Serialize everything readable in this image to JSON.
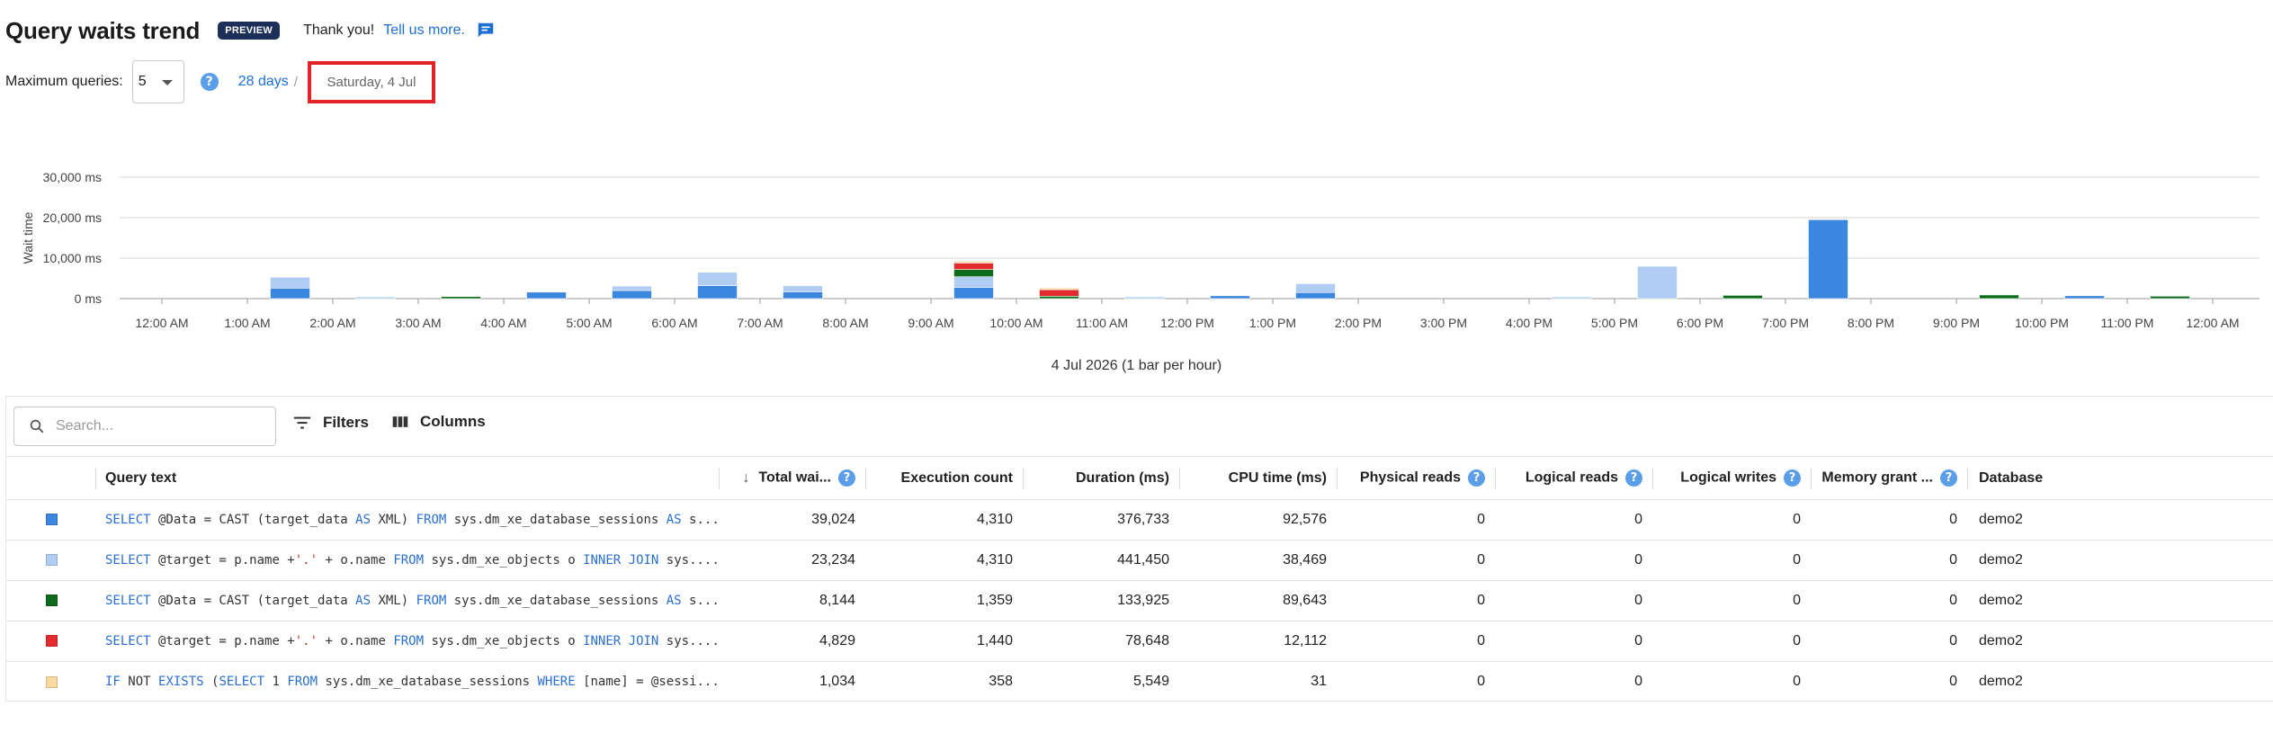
{
  "header": {
    "title": "Query waits trend",
    "badge": "PREVIEW",
    "thanks": "Thank you!",
    "tell_us": "Tell us more."
  },
  "controls": {
    "max_queries_label": "Maximum queries:",
    "max_queries_value": "5",
    "range_link": "28 days",
    "separator": "/",
    "current_day": "Saturday, 4 Jul"
  },
  "chart_data": {
    "type": "bar",
    "stacked": true,
    "ylabel": "Wait time",
    "xlabel": "4 Jul 2026 (1 bar per hour)",
    "ylim": [
      0,
      30000
    ],
    "yticks": [
      "0 ms",
      "10,000 ms",
      "20,000 ms",
      "30,000 ms"
    ],
    "x_tick_labels": [
      "12:00 AM",
      "1:00 AM",
      "2:00 AM",
      "3:00 AM",
      "4:00 AM",
      "5:00 AM",
      "6:00 AM",
      "7:00 AM",
      "8:00 AM",
      "9:00 AM",
      "10:00 AM",
      "11:00 AM",
      "12:00 PM",
      "1:00 PM",
      "2:00 PM",
      "3:00 PM",
      "4:00 PM",
      "5:00 PM",
      "6:00 PM",
      "7:00 PM",
      "8:00 PM",
      "9:00 PM",
      "10:00 PM",
      "11:00 PM",
      "12:00 AM"
    ],
    "categories": [
      "12:00 AM",
      "1:00 AM",
      "2:00 AM",
      "3:00 AM",
      "4:00 AM",
      "5:00 AM",
      "6:00 AM",
      "7:00 AM",
      "8:00 AM",
      "9:00 AM",
      "10:00 AM",
      "11:00 AM",
      "12:00 PM",
      "1:00 PM",
      "2:00 PM",
      "3:00 PM",
      "4:00 PM",
      "5:00 PM",
      "6:00 PM",
      "7:00 PM",
      "8:00 PM",
      "9:00 PM",
      "10:00 PM",
      "11:00 PM"
    ],
    "grid": true,
    "series": [
      {
        "color": "#3b86de",
        "values": [
          0,
          2600,
          0,
          0,
          1600,
          2000,
          3200,
          1700,
          0,
          2800,
          0,
          0,
          700,
          1500,
          0,
          0,
          0,
          0,
          0,
          19500,
          0,
          0,
          700,
          0
        ]
      },
      {
        "color": "#b1cdf3",
        "values": [
          0,
          2700,
          150,
          0,
          0,
          1100,
          3300,
          1500,
          0,
          2600,
          0,
          400,
          0,
          2200,
          0,
          0,
          400,
          8000,
          0,
          0,
          0,
          0,
          0,
          0
        ]
      },
      {
        "color": "#0f6b1c",
        "values": [
          0,
          0,
          0,
          500,
          0,
          0,
          0,
          0,
          0,
          1800,
          600,
          0,
          0,
          0,
          0,
          0,
          0,
          0,
          800,
          0,
          0,
          900,
          0,
          600
        ]
      },
      {
        "color": "#e32b2e",
        "values": [
          0,
          0,
          0,
          0,
          0,
          0,
          0,
          0,
          0,
          1600,
          1600,
          0,
          0,
          0,
          0,
          0,
          0,
          0,
          0,
          0,
          0,
          0,
          0,
          0
        ]
      },
      {
        "color": "#fad8a0",
        "values": [
          0,
          0,
          0,
          0,
          0,
          0,
          0,
          0,
          0,
          300,
          300,
          0,
          0,
          0,
          0,
          0,
          0,
          0,
          0,
          0,
          0,
          0,
          0,
          0
        ]
      }
    ]
  },
  "table": {
    "search_placeholder": "Search...",
    "filters_label": "Filters",
    "columns_label": "Columns",
    "headers": {
      "query_text": "Query text",
      "total_wait": "Total wai...",
      "exec_count": "Execution count",
      "duration": "Duration (ms)",
      "cpu": "CPU time (ms)",
      "phys_reads": "Physical reads",
      "log_reads": "Logical reads",
      "log_writes": "Logical writes",
      "mem_grant": "Memory grant ...",
      "database": "Database"
    },
    "rows": [
      {
        "color": "#3b86de",
        "total_wait": "39,024",
        "exec_count": "4,310",
        "duration": "376,733",
        "cpu": "92,576",
        "phys_reads": "0",
        "log_reads": "0",
        "log_writes": "0",
        "mem_grant": "0",
        "database": "demo2",
        "q": {
          "a": "SELECT",
          "b": " @Data = CAST (target_data ",
          "c": "AS",
          "d": " XML) ",
          "e": "FROM",
          "f": " sys.dm_xe_database_sessions ",
          "g": "AS",
          "h": " s..."
        }
      },
      {
        "color": "#b1cdf3",
        "total_wait": "23,234",
        "exec_count": "4,310",
        "duration": "441,450",
        "cpu": "38,469",
        "phys_reads": "0",
        "log_reads": "0",
        "log_writes": "0",
        "mem_grant": "0",
        "database": "demo2",
        "q": {
          "a": "SELECT",
          "b": " @target = p.name +",
          "s": "'.'",
          "c": " + o.name ",
          "e": "FROM",
          "f": " sys.dm_xe_objects o ",
          "g": "INNER JOIN",
          "h": " sys...."
        }
      },
      {
        "color": "#0f6b1c",
        "total_wait": "8,144",
        "exec_count": "1,359",
        "duration": "133,925",
        "cpu": "89,643",
        "phys_reads": "0",
        "log_reads": "0",
        "log_writes": "0",
        "mem_grant": "0",
        "database": "demo2",
        "q": {
          "a": "SELECT",
          "b": " @Data = CAST (target_data ",
          "c": "AS",
          "d": " XML) ",
          "e": "FROM",
          "f": " sys.dm_xe_database_sessions ",
          "g": "AS",
          "h": " s..."
        }
      },
      {
        "color": "#e32b2e",
        "total_wait": "4,829",
        "exec_count": "1,440",
        "duration": "78,648",
        "cpu": "12,112",
        "phys_reads": "0",
        "log_reads": "0",
        "log_writes": "0",
        "mem_grant": "0",
        "database": "demo2",
        "q": {
          "a": "SELECT",
          "b": " @target = p.name +",
          "s": "'.'",
          "c": " + o.name ",
          "e": "FROM",
          "f": " sys.dm_xe_objects o ",
          "g": "INNER JOIN",
          "h": " sys...."
        }
      },
      {
        "color": "#fad8a0",
        "total_wait": "1,034",
        "exec_count": "358",
        "duration": "5,549",
        "cpu": "31",
        "phys_reads": "0",
        "log_reads": "0",
        "log_writes": "0",
        "mem_grant": "0",
        "database": "demo2",
        "q": {
          "a": "IF",
          "b": " NOT ",
          "c": "EXISTS",
          "d": " (",
          "e": "SELECT",
          "f": " 1 ",
          "g": "FROM",
          "h": " sys.dm_xe_database_sessions ",
          "i": "WHERE",
          "j": " [name] = @sessi..."
        }
      }
    ]
  }
}
